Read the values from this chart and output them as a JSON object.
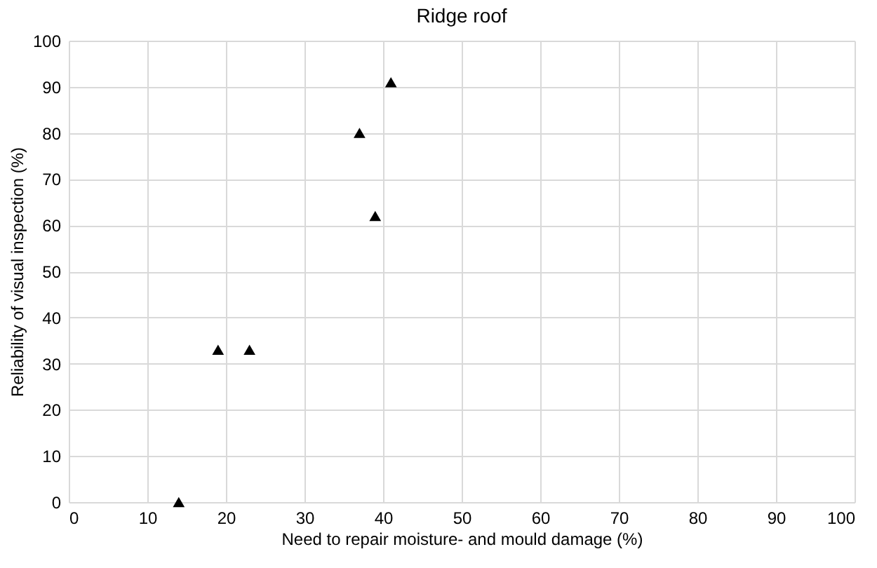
{
  "chart_data": {
    "type": "scatter",
    "title": "Ridge roof",
    "xlabel": "Need to repair moisture- and mould damage (%)",
    "ylabel": "Reliability of visual inspection (%)",
    "x": [
      14,
      19,
      23,
      37,
      39,
      41
    ],
    "values": [
      0,
      33,
      33,
      80,
      62,
      91
    ],
    "color": "#000000",
    "marker": "triangle",
    "xlim": [
      0,
      100
    ],
    "xticks": [
      0,
      10,
      20,
      30,
      40,
      50,
      60,
      70,
      80,
      90,
      100
    ],
    "ylim": [
      0,
      100
    ],
    "yticks": [
      0,
      10,
      20,
      30,
      40,
      50,
      60,
      70,
      80,
      90,
      100
    ],
    "grid": true
  }
}
